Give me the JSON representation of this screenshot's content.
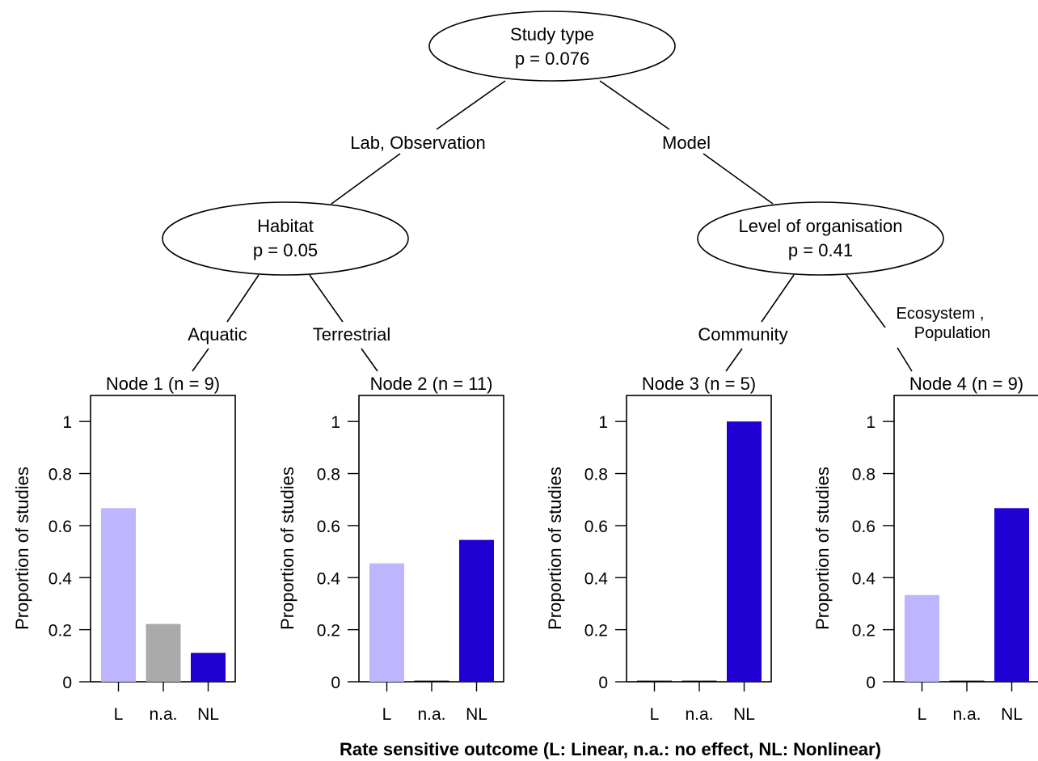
{
  "colors": {
    "L": "#bdb5fd",
    "n.a.": "#aaaaaa",
    "NL": "#1e00d2",
    "line": "#000000"
  },
  "tree": {
    "root": {
      "label": "Study type",
      "p": "p = 0.076"
    },
    "left_edge": "Lab, Observation",
    "right_edge": "Model",
    "habitat": {
      "label": "Habitat",
      "p": "p = 0.05"
    },
    "organisation": {
      "label": "Level of organisation",
      "p": "p = 0.41"
    },
    "edge_aquatic": "Aquatic",
    "edge_terrestrial": "Terrestrial",
    "edge_community": "Community",
    "edge_ecosystem_1": "Ecosystem ,",
    "edge_ecosystem_2": "Population"
  },
  "x_axis_label": "Rate sensitive outcome (L: Linear, n.a.: no effect, NL: Nonlinear)",
  "chart_data": {
    "type": "bar",
    "categories": [
      "L",
      "n.a.",
      "NL"
    ],
    "ylabel": "Proportion of studies",
    "ylim": [
      0,
      1.1
    ],
    "yticks": [
      "0",
      "0.2",
      "0.4",
      "0.6",
      "0.8",
      "1"
    ],
    "panels": [
      {
        "title": "Node 1  (n = 9)",
        "values": [
          0.667,
          0.222,
          0.111
        ]
      },
      {
        "title": "Node 2  (n = 11)",
        "values": [
          0.455,
          0.0,
          0.545
        ]
      },
      {
        "title": "Node 3  (n = 5)",
        "values": [
          0.0,
          0.0,
          1.0
        ]
      },
      {
        "title": "Node 4  (n = 9)",
        "values": [
          0.333,
          0.0,
          0.667
        ]
      }
    ]
  }
}
